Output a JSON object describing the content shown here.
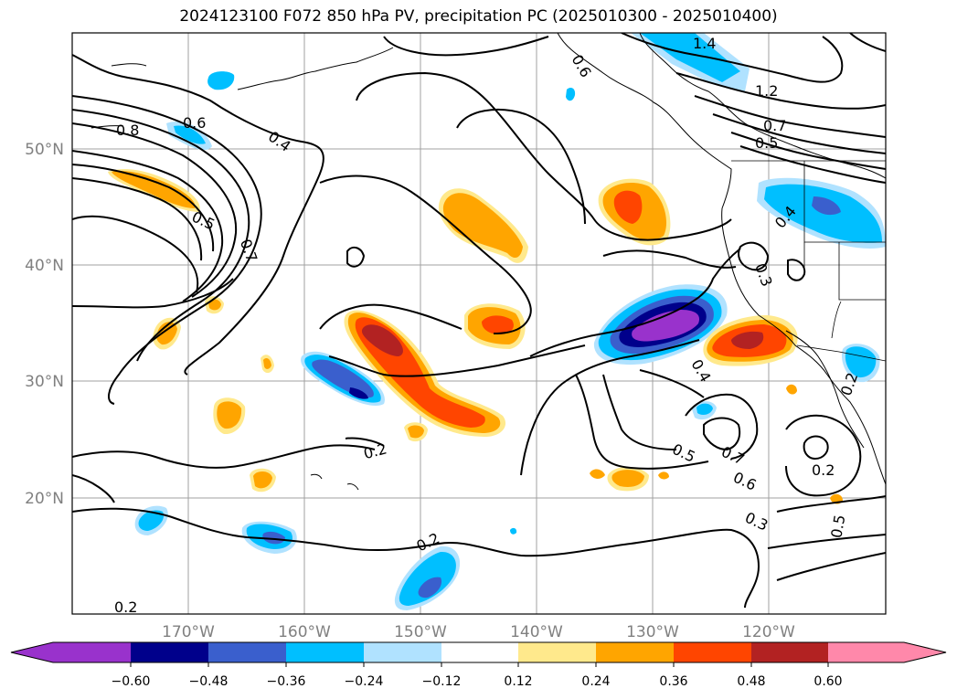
{
  "title": "2024123100 F072 850 hPa PV, precipitation PC (2025010300 - 2025010400)",
  "map": {
    "lon_labels": [
      "170°W",
      "160°W",
      "150°W",
      "140°W",
      "130°W",
      "120°W"
    ],
    "lat_labels": [
      "50°N",
      "40°N",
      "30°N",
      "20°N"
    ],
    "contour_labels": [
      "0.8",
      "0.6",
      "0.4",
      "0.5",
      "0.7",
      "0.2",
      "0.2",
      "0.2",
      "1.4",
      "1.2",
      "0.7",
      "0.5",
      "0.4",
      "0.6",
      "0.4",
      "0.3",
      "0.5",
      "0.7",
      "0.6",
      "0.3",
      "0.2",
      "0.5",
      "0.2"
    ]
  },
  "colorbar": {
    "ticks": [
      "−0.60",
      "−0.48",
      "−0.36",
      "−0.24",
      "−0.12",
      "0.12",
      "0.24",
      "0.36",
      "0.48",
      "0.60"
    ],
    "colors": [
      "#9932cc",
      "#00008b",
      "#3a5fcd",
      "#00bfff",
      "#b0e2ff",
      "#ffffff",
      "#ffe98c",
      "#ffa500",
      "#ff4500",
      "#b22222",
      "#ff88aa"
    ]
  }
}
